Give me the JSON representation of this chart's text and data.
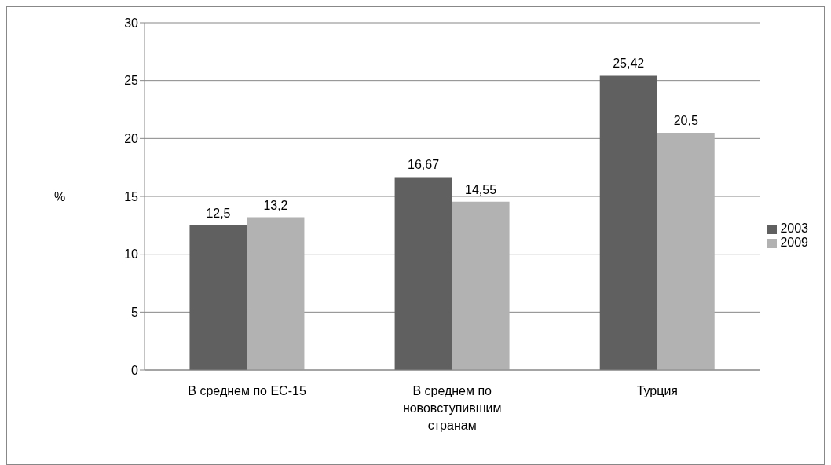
{
  "chart_data": {
    "type": "bar",
    "categories": [
      "В среднем по ЕС-15",
      "В среднем по нововступившим странам",
      "Турция"
    ],
    "series": [
      {
        "name": "2003",
        "color": "#606060",
        "values": [
          12.5,
          16.67,
          25.42
        ],
        "value_labels": [
          "12,5",
          "16,67",
          "25,42"
        ]
      },
      {
        "name": "2009",
        "color": "#b2b2b2",
        "values": [
          13.2,
          14.55,
          20.5
        ],
        "value_labels": [
          "13,2",
          "14,55",
          "20,5"
        ]
      }
    ],
    "ylabel": "%",
    "ylim": [
      0,
      30
    ],
    "yticks": [
      0,
      5,
      10,
      15,
      20,
      25,
      30
    ],
    "grid": "y",
    "legend": "right"
  }
}
